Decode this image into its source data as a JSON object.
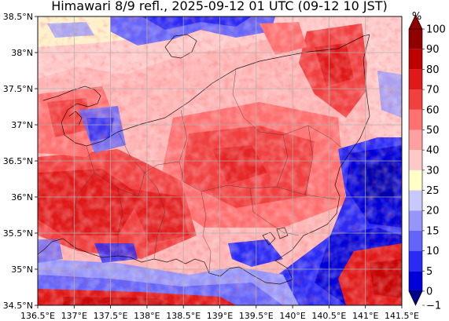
{
  "title": "Himawari 8/9 refl., 2025-09-12 01 UTC (09-12 10 JST)",
  "map": {
    "lon_range": [
      136.5,
      141.5
    ],
    "lat_range": [
      34.5,
      38.5
    ],
    "grid": true,
    "x_ticks": [
      {
        "value": 136.5,
        "label": "136.5°E"
      },
      {
        "value": 137.0,
        "label": "137°E"
      },
      {
        "value": 137.5,
        "label": "137.5°E"
      },
      {
        "value": 138.0,
        "label": "138°E"
      },
      {
        "value": 138.5,
        "label": "138.5°E"
      },
      {
        "value": 139.0,
        "label": "139°E"
      },
      {
        "value": 139.5,
        "label": "139.5°E"
      },
      {
        "value": 140.0,
        "label": "140°E"
      },
      {
        "value": 140.5,
        "label": "140.5°E"
      },
      {
        "value": 141.0,
        "label": "141°E"
      },
      {
        "value": 141.5,
        "label": "141.5°E"
      }
    ],
    "y_ticks": [
      {
        "value": 38.5,
        "label": "38.5°N"
      },
      {
        "value": 38.0,
        "label": "38°N"
      },
      {
        "value": 37.5,
        "label": "37.5°N"
      },
      {
        "value": 37.0,
        "label": "37°N"
      },
      {
        "value": 36.5,
        "label": "36.5°N"
      },
      {
        "value": 36.0,
        "label": "36°N"
      },
      {
        "value": 35.5,
        "label": "35.5°N"
      },
      {
        "value": 35.0,
        "label": "35°N"
      },
      {
        "value": 34.5,
        "label": "34.5°N"
      }
    ]
  },
  "colorbar": {
    "unit": "%",
    "levels": [
      -1,
      0,
      5,
      10,
      15,
      20,
      25,
      30,
      40,
      50,
      60,
      70,
      80,
      90,
      100
    ],
    "labels": [
      "−1",
      "0",
      "5",
      "10",
      "15",
      "20",
      "25",
      "30",
      "40",
      "50",
      "60",
      "70",
      "80",
      "90",
      "100"
    ],
    "colors": [
      "#00008a",
      "#0000d8",
      "#2a2af5",
      "#6464fa",
      "#9696fa",
      "#c8c8fa",
      "#ffffc8",
      "#ffc8c8",
      "#ffa0a0",
      "#ff7070",
      "#f04040",
      "#e01818",
      "#c00000",
      "#900000"
    ],
    "under_color": "#00008a",
    "over_color": "#900000"
  }
}
